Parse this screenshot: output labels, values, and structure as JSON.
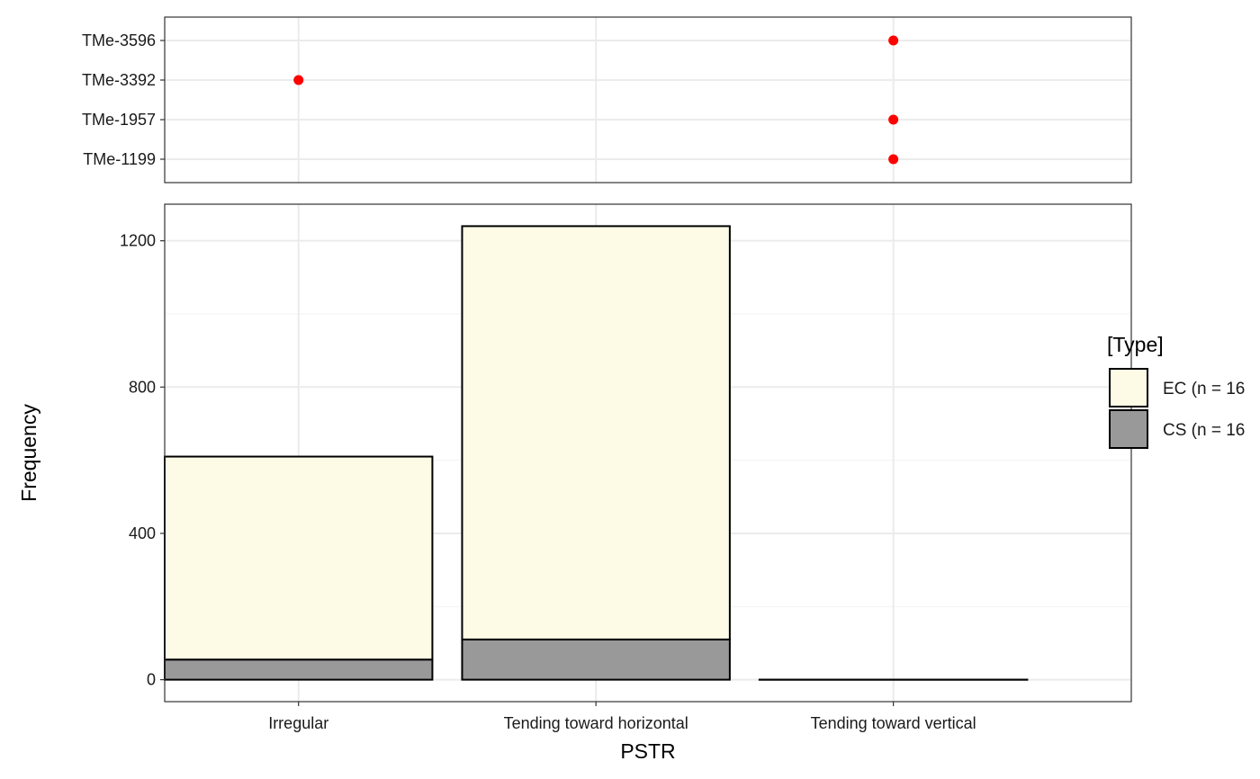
{
  "chart_data": [
    {
      "type": "scatter",
      "categories": [
        "Irregular",
        "Tending toward horizontal",
        "Tending toward vertical"
      ],
      "y_categories": [
        "TMe-1199",
        "TMe-1957",
        "TMe-3392",
        "TMe-3596"
      ],
      "points": [
        {
          "y": "TMe-3596",
          "x": "Tending toward vertical"
        },
        {
          "y": "TMe-3392",
          "x": "Irregular"
        },
        {
          "y": "TMe-1957",
          "x": "Tending toward vertical"
        },
        {
          "y": "TMe-1199",
          "x": "Tending toward vertical"
        }
      ],
      "point_color": "#ff0000",
      "grid": true
    },
    {
      "type": "bar",
      "stacked": true,
      "categories": [
        "Irregular",
        "Tending toward horizontal",
        "Tending toward vertical"
      ],
      "series": [
        {
          "name": "CS (n = 16",
          "values": [
            55,
            110,
            0
          ],
          "color": "#999999"
        },
        {
          "name": "EC (n = 16",
          "values": [
            555,
            1130,
            0
          ],
          "color": "#fdfae6"
        }
      ],
      "xlabel": "PSTR",
      "ylabel": "Frequency",
      "ylim": [
        -60,
        1300
      ],
      "yticks": [
        0,
        400,
        800,
        1200
      ],
      "legend_title": "[Type]",
      "legend_order": [
        "EC (n = 16",
        "CS (n = 16"
      ],
      "legend_position": "right",
      "grid": true
    }
  ]
}
